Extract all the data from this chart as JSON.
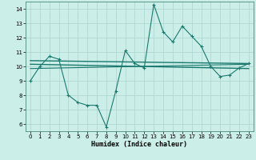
{
  "xlabel": "Humidex (Indice chaleur)",
  "ylabel": "",
  "bg_color": "#cceee8",
  "line_color": "#1a7a6e",
  "grid_color": "#aad4ce",
  "xlim": [
    -0.5,
    23.5
  ],
  "ylim": [
    5.5,
    14.5
  ],
  "yticks": [
    6,
    7,
    8,
    9,
    10,
    11,
    12,
    13,
    14
  ],
  "xticks": [
    0,
    1,
    2,
    3,
    4,
    5,
    6,
    7,
    8,
    9,
    10,
    11,
    12,
    13,
    14,
    15,
    16,
    17,
    18,
    19,
    20,
    21,
    22,
    23
  ],
  "line1_x": [
    0,
    1,
    2,
    3,
    4,
    5,
    6,
    7,
    8,
    9,
    10,
    11,
    12,
    13,
    14,
    15,
    16,
    17,
    18,
    19,
    20,
    21,
    22,
    23
  ],
  "line1_y": [
    9.0,
    10.0,
    10.7,
    10.5,
    8.0,
    7.5,
    7.3,
    7.3,
    5.8,
    8.3,
    11.1,
    10.2,
    9.9,
    14.3,
    12.4,
    11.7,
    12.8,
    12.1,
    11.4,
    10.0,
    9.3,
    9.4,
    9.9,
    10.2
  ],
  "line2_x": [
    0,
    23
  ],
  "line2_y": [
    10.4,
    10.2
  ],
  "line3_x": [
    0,
    23
  ],
  "line3_y": [
    10.15,
    9.85
  ],
  "line4_x": [
    0,
    23
  ],
  "line4_y": [
    9.85,
    10.15
  ]
}
